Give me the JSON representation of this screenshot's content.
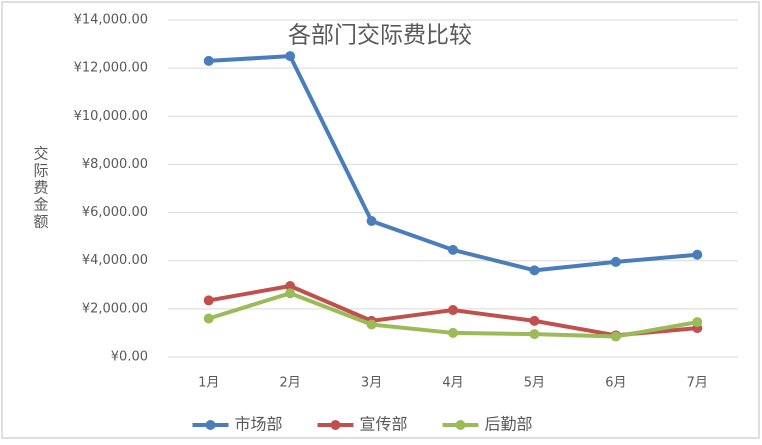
{
  "chart_data": {
    "type": "line",
    "title": "各部门交际费比较",
    "y_label": "交际费金额",
    "categories": [
      "1月",
      "2月",
      "3月",
      "4月",
      "5月",
      "6月",
      "7月"
    ],
    "series": [
      {
        "name": "市场部",
        "color": "#4a7ebb",
        "values": [
          12300,
          12500,
          5650,
          4450,
          3600,
          3950,
          4250
        ]
      },
      {
        "name": "宣传部",
        "color": "#c0504d",
        "values": [
          2350,
          2950,
          1500,
          1950,
          1500,
          900,
          1200
        ]
      },
      {
        "name": "后勤部",
        "color": "#9bbb59",
        "values": [
          1600,
          2650,
          1350,
          1000,
          950,
          850,
          1450
        ]
      }
    ],
    "ylim": [
      0,
      14000
    ],
    "yticks": [
      {
        "value": 0,
        "label": "¥0.00"
      },
      {
        "value": 2000,
        "label": "¥2,000.00"
      },
      {
        "value": 4000,
        "label": "¥4,000.00"
      },
      {
        "value": 6000,
        "label": "¥6,000.00"
      },
      {
        "value": 8000,
        "label": "¥8,000.00"
      },
      {
        "value": 10000,
        "label": "¥10,000.00"
      },
      {
        "value": 12000,
        "label": "¥12,000.00"
      },
      {
        "value": 14000,
        "label": "¥14,000.00"
      }
    ],
    "grid": true,
    "legend": "bottom"
  }
}
